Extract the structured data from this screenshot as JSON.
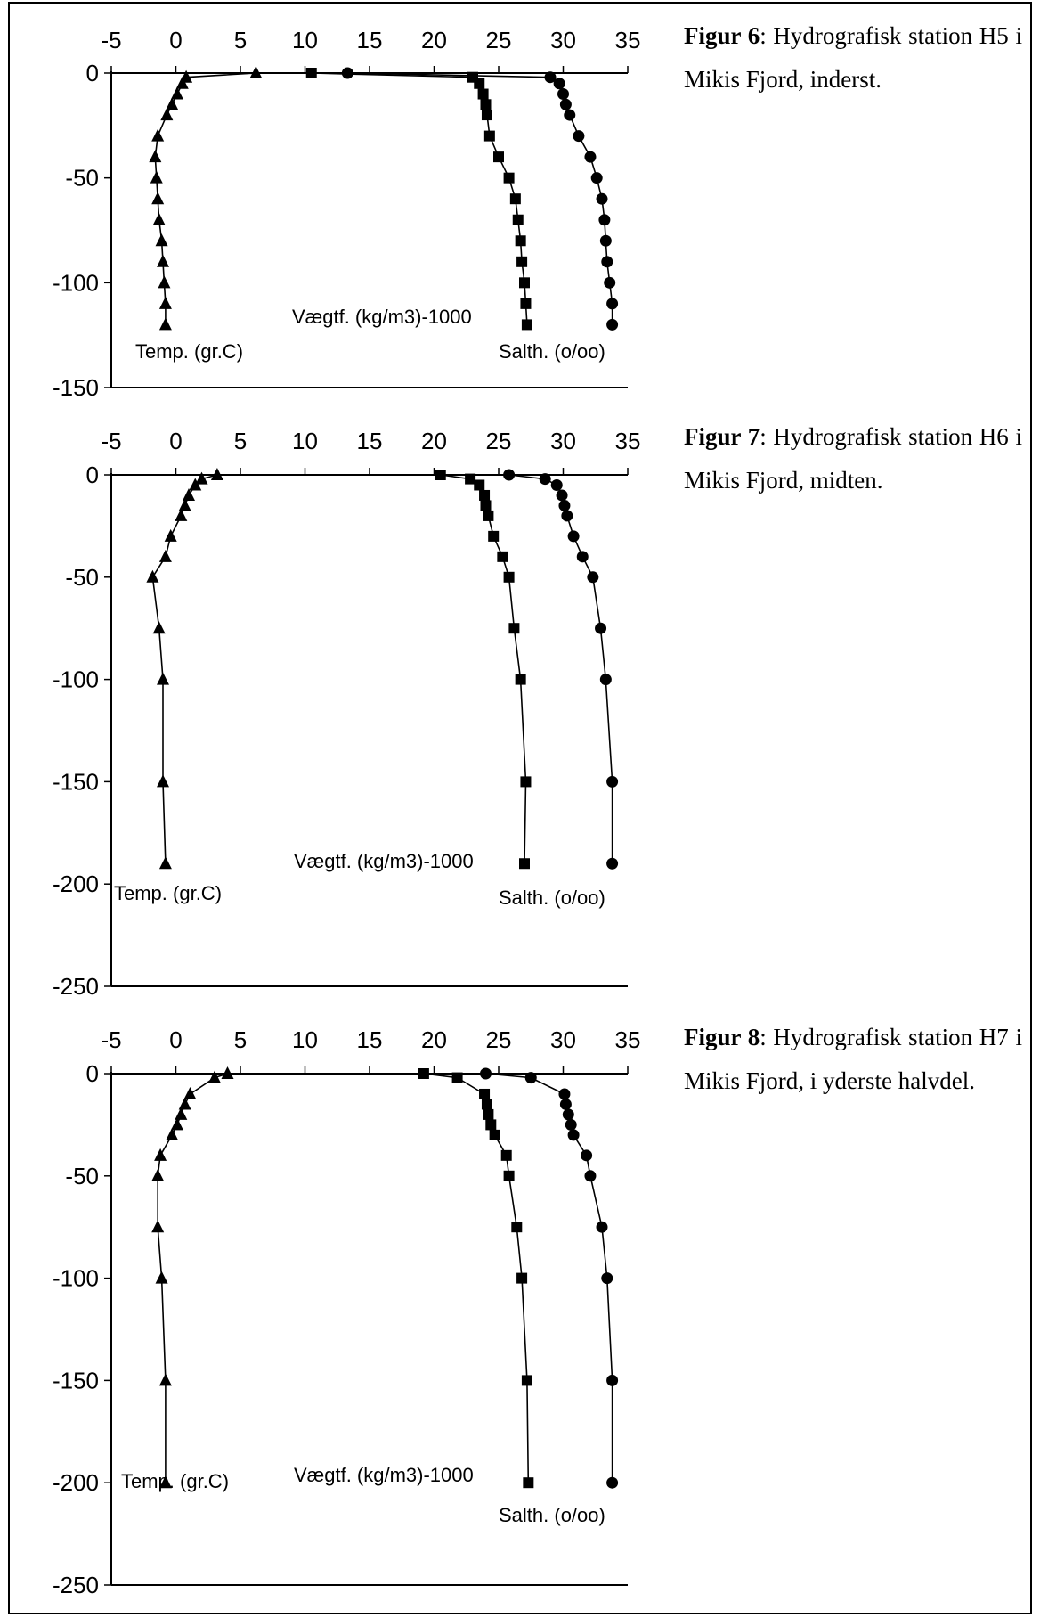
{
  "charts": [
    {
      "caption_label": "Figur 6",
      "caption_text": ": Hydrografisk station H5 i Mikis Fjord, inderst.",
      "chart_data": {
        "type": "line",
        "x_ticks": [
          "-5",
          "0",
          "5",
          "10",
          "15",
          "20",
          "25",
          "30",
          "35"
        ],
        "y_ticks": [
          "0",
          "-50",
          "-100",
          "-150"
        ],
        "xlim": [
          -5,
          35
        ],
        "ylim": [
          -150,
          0
        ],
        "series": [
          {
            "name": "Temp. (gr.C)",
            "marker": "triangle",
            "x": [
              6.2,
              0.8,
              0.5,
              0.1,
              -0.3,
              -0.7,
              -1.4,
              -1.6,
              -1.5,
              -1.4,
              -1.3,
              -1.1,
              -1.0,
              -0.9,
              -0.8,
              -0.8
            ],
            "y": [
              0,
              -2,
              -5,
              -10,
              -15,
              -20,
              -30,
              -40,
              -50,
              -60,
              -70,
              -80,
              -90,
              -100,
              -110,
              -120
            ]
          },
          {
            "name": "Vægtf. (kg/m3)-1000",
            "marker": "square",
            "x": [
              10.5,
              23.0,
              23.5,
              23.8,
              24.0,
              24.1,
              24.3,
              25.0,
              25.8,
              26.3,
              26.5,
              26.7,
              26.8,
              27.0,
              27.1,
              27.2
            ],
            "y": [
              0,
              -2,
              -5,
              -10,
              -15,
              -20,
              -30,
              -40,
              -50,
              -60,
              -70,
              -80,
              -90,
              -100,
              -110,
              -120
            ]
          },
          {
            "name": "Salth. (o/oo)",
            "marker": "circle",
            "x": [
              13.3,
              29.0,
              29.7,
              30.0,
              30.2,
              30.5,
              31.2,
              32.1,
              32.6,
              33.0,
              33.2,
              33.3,
              33.4,
              33.6,
              33.8,
              33.8
            ],
            "y": [
              0,
              -2,
              -5,
              -10,
              -15,
              -20,
              -30,
              -40,
              -50,
              -60,
              -70,
              -80,
              -90,
              -100,
              -110,
              -120
            ]
          }
        ]
      }
    },
    {
      "caption_label": "Figur 7",
      "caption_text": ": Hydrografisk station H6 i Mikis Fjord, midten.",
      "chart_data": {
        "type": "line",
        "x_ticks": [
          "-5",
          "0",
          "5",
          "10",
          "15",
          "20",
          "25",
          "30",
          "35"
        ],
        "y_ticks": [
          "0",
          "-50",
          "-100",
          "-150",
          "-200",
          "-250"
        ],
        "xlim": [
          -5,
          35
        ],
        "ylim": [
          -250,
          0
        ],
        "series": [
          {
            "name": "Temp. (gr.C)",
            "marker": "triangle",
            "x": [
              3.2,
              2.0,
              1.5,
              1.0,
              0.7,
              0.4,
              -0.4,
              -0.8,
              -1.8,
              -1.3,
              -1.0,
              -1.0,
              -0.8
            ],
            "y": [
              0,
              -2,
              -5,
              -10,
              -15,
              -20,
              -30,
              -40,
              -50,
              -75,
              -100,
              -150,
              -190
            ]
          },
          {
            "name": "Vægtf. (kg/m3)-1000",
            "marker": "square",
            "x": [
              20.5,
              22.8,
              23.5,
              23.9,
              24.0,
              24.2,
              24.6,
              25.3,
              25.8,
              26.2,
              26.7,
              27.1,
              27.0
            ],
            "y": [
              0,
              -2,
              -5,
              -10,
              -15,
              -20,
              -30,
              -40,
              -50,
              -75,
              -100,
              -150,
              -190
            ]
          },
          {
            "name": "Salth. (o/oo)",
            "marker": "circle",
            "x": [
              25.8,
              28.6,
              29.5,
              29.9,
              30.1,
              30.3,
              30.8,
              31.5,
              32.3,
              32.9,
              33.3,
              33.8,
              33.8
            ],
            "y": [
              0,
              -2,
              -5,
              -10,
              -15,
              -20,
              -30,
              -40,
              -50,
              -75,
              -100,
              -150,
              -190
            ]
          }
        ]
      }
    },
    {
      "caption_label": "Figur 8",
      "caption_text": ": Hydrografisk station H7 i Mikis Fjord, i yderste halvdel.",
      "chart_data": {
        "type": "line",
        "x_ticks": [
          "-5",
          "0",
          "5",
          "10",
          "15",
          "20",
          "25",
          "30",
          "35"
        ],
        "y_ticks": [
          "0",
          "-50",
          "-100",
          "-150",
          "-200",
          "-250"
        ],
        "xlim": [
          -5,
          35
        ],
        "ylim": [
          -250,
          0
        ],
        "series": [
          {
            "name": "Temp. (gr.C)",
            "marker": "triangle",
            "x": [
              4.0,
              3.0,
              1.1,
              0.7,
              0.4,
              0.1,
              -0.3,
              -1.2,
              -1.4,
              -1.4,
              -1.1,
              -0.8,
              -0.8
            ],
            "y": [
              0,
              -2,
              -10,
              -15,
              -20,
              -25,
              -30,
              -40,
              -50,
              -75,
              -100,
              -150,
              -200
            ]
          },
          {
            "name": "Vægtf. (kg/m3)-1000",
            "marker": "square",
            "x": [
              19.2,
              21.8,
              23.9,
              24.1,
              24.2,
              24.4,
              24.7,
              25.6,
              25.8,
              26.4,
              26.8,
              27.2,
              27.3
            ],
            "y": [
              0,
              -2,
              -10,
              -15,
              -20,
              -25,
              -30,
              -40,
              -50,
              -75,
              -100,
              -150,
              -200
            ]
          },
          {
            "name": "Salth. (o/oo)",
            "marker": "circle",
            "x": [
              24.0,
              27.5,
              30.1,
              30.2,
              30.4,
              30.6,
              30.8,
              31.8,
              32.1,
              33.0,
              33.4,
              33.8,
              33.8
            ],
            "y": [
              0,
              -2,
              -10,
              -15,
              -20,
              -25,
              -30,
              -40,
              -50,
              -75,
              -100,
              -150,
              -200
            ]
          }
        ]
      }
    }
  ]
}
